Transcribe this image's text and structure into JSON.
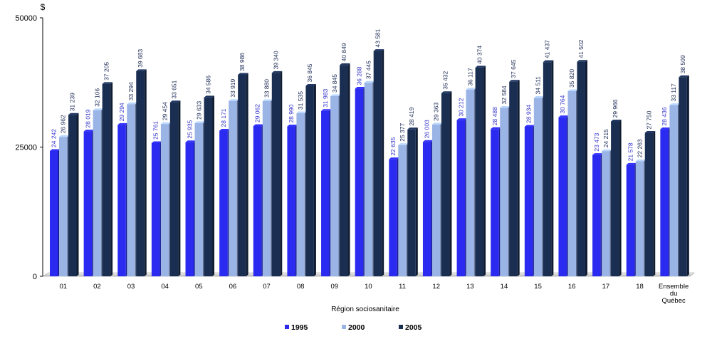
{
  "chart_data": {
    "type": "bar",
    "unit": "$",
    "xlabel": "Région sociosanitaire",
    "yticks": [
      "0",
      "25000",
      "50000"
    ],
    "ylim": [
      0,
      50000
    ],
    "categories": [
      "01",
      "02",
      "03",
      "04",
      "05",
      "06",
      "07",
      "08",
      "09",
      "10",
      "11",
      "12",
      "13",
      "14",
      "15",
      "16",
      "17",
      "18",
      [
        "Ensemble",
        "du",
        "Québec"
      ]
    ],
    "series": [
      {
        "name": "1995",
        "color": "#2a2af0",
        "label_color": "#3333cc",
        "values": [
          24242,
          28019,
          29294,
          25761,
          25935,
          28171,
          29062,
          28990,
          31983,
          36288,
          22635,
          26003,
          30212,
          28488,
          28934,
          30764,
          23473,
          21578,
          28436
        ],
        "labels": [
          "24 242",
          "28 019",
          "29 294",
          "25 761",
          "25 935",
          "28 171",
          "29 062",
          "28 990",
          "31 983",
          "36 288",
          "22 635",
          "26 003",
          "30 212",
          "28 488",
          "28 934",
          "30 764",
          "23 473",
          "21 578",
          "28 436"
        ]
      },
      {
        "name": "2000",
        "color": "#9bb4e6",
        "label_color": "#1c2a55",
        "values": [
          26962,
          32106,
          33294,
          29454,
          29633,
          33919,
          33880,
          31535,
          34845,
          37445,
          25377,
          29363,
          36117,
          32584,
          34511,
          35820,
          24215,
          22263,
          33117
        ],
        "labels": [
          "26 962",
          "32 106",
          "33 294",
          "29 454",
          "29 633",
          "33 919",
          "33 880",
          "31 535",
          "34 845",
          "37 445",
          "25 377",
          "29 363",
          "36 117",
          "32 584",
          "34 511",
          "35 820",
          "24 215",
          "22 263",
          "33 117"
        ]
      },
      {
        "name": "2005",
        "color": "#1a2e52",
        "label_color": "#1c2a55",
        "values": [
          31239,
          37205,
          39683,
          33651,
          34586,
          38986,
          39340,
          36845,
          40849,
          43581,
          28419,
          35432,
          40374,
          37645,
          41437,
          41502,
          29966,
          27750,
          38509
        ],
        "labels": [
          "31 239",
          "37 205",
          "39 683",
          "33 651",
          "34 586",
          "38 986",
          "39 340",
          "36 845",
          "40 849",
          "43 581",
          "28 419",
          "35 432",
          "40 374",
          "37 645",
          "41 437",
          "41 502",
          "29 966",
          "27 750",
          "38 509"
        ]
      }
    ],
    "legend": "bottom-center",
    "grid": false
  }
}
